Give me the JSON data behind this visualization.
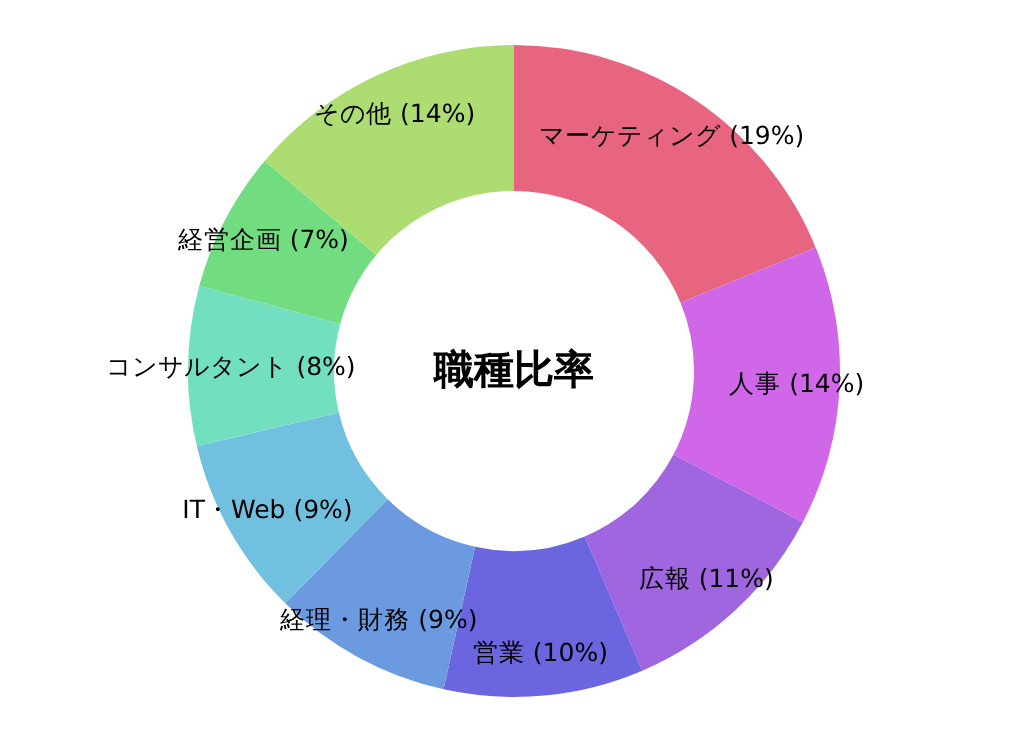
{
  "chart_data": {
    "type": "donut",
    "title": "職種比率",
    "categories": [
      "マーケティング",
      "人事",
      "広報",
      "営業",
      "経理・財務",
      "IT・Web",
      "コンサルタント",
      "経営企画",
      "その他"
    ],
    "values": [
      19,
      14,
      11,
      10,
      9,
      9,
      8,
      7,
      14
    ],
    "value_labels": [
      "(19%)",
      "(14%)",
      "(11%)",
      "(10%)",
      "(9%)",
      "(9%)",
      "(8%)",
      "(7%)",
      "(14%)"
    ],
    "colors": [
      "#e8657f",
      "#d066e8",
      "#a066e0",
      "#6b66e0",
      "#6b9ae0",
      "#72c0e0",
      "#72e0c0",
      "#72dc80",
      "#acdc72"
    ]
  }
}
